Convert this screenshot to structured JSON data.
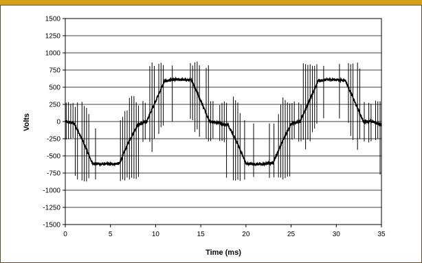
{
  "chart_data": {
    "type": "line",
    "title": "",
    "xlabel": "Time (ms)",
    "ylabel": "Volts",
    "xlim": [
      0,
      35
    ],
    "ylim": [
      -1500,
      1500
    ],
    "x_ticks": [
      0,
      5,
      10,
      15,
      20,
      25,
      30,
      35
    ],
    "y_ticks": [
      1500,
      1250,
      1000,
      750,
      500,
      250,
      0,
      -250,
      -500,
      -750,
      -1000,
      -1250,
      -1500
    ],
    "grid": "horizontal",
    "legend": "none",
    "series": [
      {
        "color": "#000000",
        "period_ms": 16.67,
        "fundamental_peak_v": 600,
        "dc_link_v": 850,
        "points": [
          [
            0,
            0
          ],
          [
            1,
            -30
          ],
          [
            2,
            -300
          ],
          [
            3,
            -610
          ],
          [
            4,
            -620
          ],
          [
            5,
            -620
          ],
          [
            6,
            -610
          ],
          [
            7,
            -300
          ],
          [
            8,
            -50
          ],
          [
            9,
            0
          ],
          [
            10,
            300
          ],
          [
            11,
            590
          ],
          [
            12,
            610
          ],
          [
            13,
            610
          ],
          [
            14,
            600
          ],
          [
            15,
            300
          ],
          [
            16,
            0
          ],
          [
            17,
            -20
          ],
          [
            18,
            -50
          ],
          [
            19,
            -300
          ],
          [
            20,
            -610
          ],
          [
            21,
            -620
          ],
          [
            22,
            -620
          ],
          [
            23,
            -600
          ],
          [
            24,
            -300
          ],
          [
            25,
            -30
          ],
          [
            26,
            0
          ],
          [
            27,
            300
          ],
          [
            28,
            590
          ],
          [
            29,
            610
          ],
          [
            30,
            610
          ],
          [
            31,
            600
          ],
          [
            32,
            300
          ],
          [
            33,
            0
          ],
          [
            34,
            0
          ],
          [
            35,
            -50
          ]
        ]
      }
    ]
  }
}
